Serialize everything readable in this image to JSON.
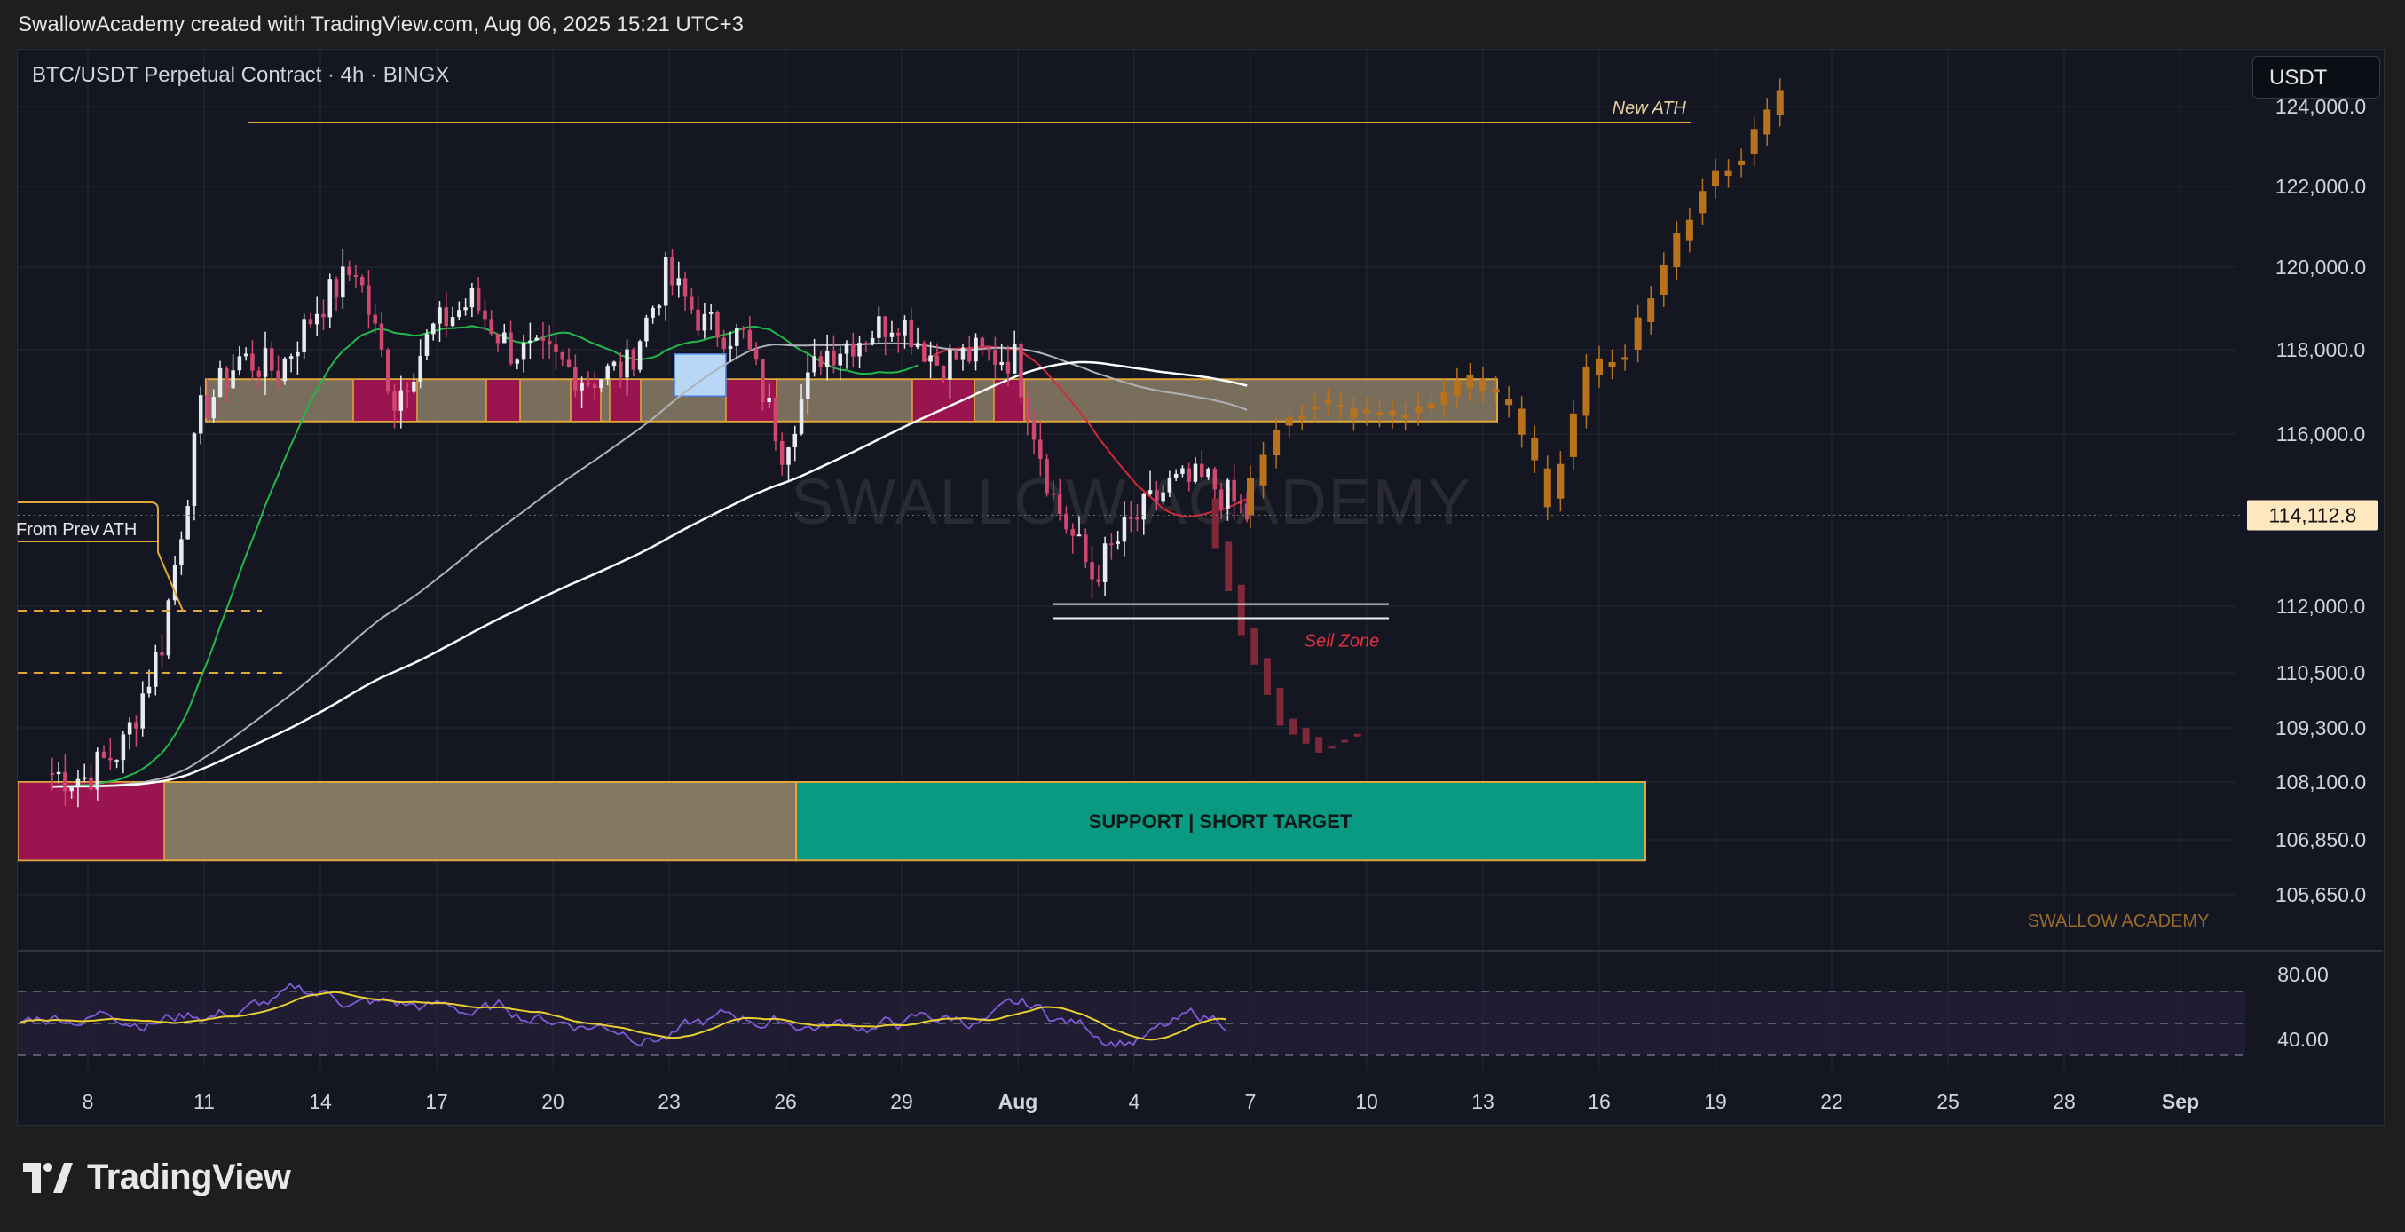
{
  "header": {
    "publish_info": "SwallowAcademy created with TradingView.com, Aug 06, 2025 15:21 UTC+3"
  },
  "symbol": {
    "title": "BTC/USDT Perpetual Contract · 4h · BINGX"
  },
  "toolbar": {
    "currency_label": "USDT"
  },
  "branding": {
    "watermark": "SWALLOW ACADEMY",
    "signature": "SWALLOW ACADEMY",
    "footer": "TradingView"
  },
  "colors": {
    "background": "#141722",
    "up_candle": "#e8ecf0",
    "down_candle": "#d04770",
    "projection_up": "#b8721c",
    "projection_down": "#7e2838",
    "zone_fill": "#8b7c66",
    "zone_border": "#e0a83a",
    "support_fill": "#0a9a82",
    "magenta": "#9a1550",
    "ema_green": "#22b84a",
    "ema_red": "#d02a3a",
    "ma_white": "#ffffff",
    "ma_gray": "#b0b2b8",
    "rsi_line": "#7f5ad8",
    "rsi_ma": "#e8d030",
    "price_tag": "#ffe8c0"
  },
  "chart_data": {
    "type": "candlestick",
    "title": "BTC/USDT Perpetual Contract · 4h · BINGX",
    "x_tick_labels": [
      "8",
      "11",
      "14",
      "17",
      "20",
      "23",
      "26",
      "29",
      "Aug",
      "4",
      "7",
      "10",
      "13",
      "16",
      "19",
      "22",
      "25",
      "28",
      "Sep"
    ],
    "y_tick_labels": [
      "124,000.0",
      "122,000.0",
      "120,000.0",
      "118,000.0",
      "116,000.0",
      "112,000.0",
      "110,500.0",
      "109,300.0",
      "108,100.0",
      "106,850.0",
      "105,650.0"
    ],
    "current_price": "114,112.8",
    "annotations": {
      "new_ath": "New ATH",
      "sell_zone": "Sell Zone",
      "from_prev_ath": "From Prev ATH",
      "support_target": "SUPPORT | SHORT TARGET"
    },
    "daily_closes": [
      {
        "day": "Jul 7",
        "close": 108200
      },
      {
        "day": "Jul 8",
        "close": 108900
      },
      {
        "day": "Jul 9",
        "close": 111200
      },
      {
        "day": "Jul 10",
        "close": 116500
      },
      {
        "day": "Jul 11",
        "close": 117800
      },
      {
        "day": "Jul 12",
        "close": 117500
      },
      {
        "day": "Jul 13",
        "close": 119000
      },
      {
        "day": "Jul 14",
        "close": 120000
      },
      {
        "day": "Jul 15",
        "close": 116800
      },
      {
        "day": "Jul 16",
        "close": 118500
      },
      {
        "day": "Jul 17",
        "close": 119200
      },
      {
        "day": "Jul 18",
        "close": 118000
      },
      {
        "day": "Jul 19",
        "close": 117800
      },
      {
        "day": "Jul 20",
        "close": 117300
      },
      {
        "day": "Jul 21",
        "close": 117600
      },
      {
        "day": "Jul 22",
        "close": 119800
      },
      {
        "day": "Jul 23",
        "close": 118600
      },
      {
        "day": "Jul 24",
        "close": 118300
      },
      {
        "day": "Jul 25",
        "close": 115700
      },
      {
        "day": "Jul 26",
        "close": 117900
      },
      {
        "day": "Jul 27",
        "close": 118300
      },
      {
        "day": "Jul 28",
        "close": 118800
      },
      {
        "day": "Jul 29",
        "close": 117700
      },
      {
        "day": "Jul 30",
        "close": 117900
      },
      {
        "day": "Jul 31",
        "close": 117800
      },
      {
        "day": "Aug 1",
        "close": 114500
      },
      {
        "day": "Aug 2",
        "close": 112700
      },
      {
        "day": "Aug 3",
        "close": 113900
      },
      {
        "day": "Aug 4",
        "close": 114800
      },
      {
        "day": "Aug 5",
        "close": 114900
      },
      {
        "day": "Aug 6",
        "close": 114112.8
      }
    ],
    "projection_bullish": [
      {
        "day": "Aug 7",
        "close": 116200
      },
      {
        "day": "Aug 8",
        "close": 116800
      },
      {
        "day": "Aug 9",
        "close": 116500
      },
      {
        "day": "Aug 10",
        "close": 116400
      },
      {
        "day": "Aug 11",
        "close": 116700
      },
      {
        "day": "Aug 12",
        "close": 117300
      },
      {
        "day": "Aug 13",
        "close": 116600
      },
      {
        "day": "Aug 14",
        "close": 114500
      },
      {
        "day": "Aug 15",
        "close": 117400
      },
      {
        "day": "Aug 16",
        "close": 118000
      },
      {
        "day": "Aug 17",
        "close": 120000
      },
      {
        "day": "Aug 18",
        "close": 122000
      },
      {
        "day": "Aug 19",
        "close": 122800
      },
      {
        "day": "Aug 20",
        "close": 124300
      }
    ],
    "projection_bearish": [
      {
        "day": "Aug 6",
        "close": 111500
      },
      {
        "day": "Aug 7",
        "close": 109500
      },
      {
        "day": "Aug 8",
        "close": 108900
      },
      {
        "day": "Aug 9",
        "close": 109300
      }
    ],
    "zones": [
      {
        "name": "resistance",
        "from": 116300,
        "to": 117300
      },
      {
        "name": "support",
        "from": 106400,
        "to": 108100
      },
      {
        "name": "sell",
        "from": 111850,
        "to": 112050
      }
    ],
    "rsi": {
      "levels": [
        "80.00",
        "40.00"
      ]
    }
  }
}
